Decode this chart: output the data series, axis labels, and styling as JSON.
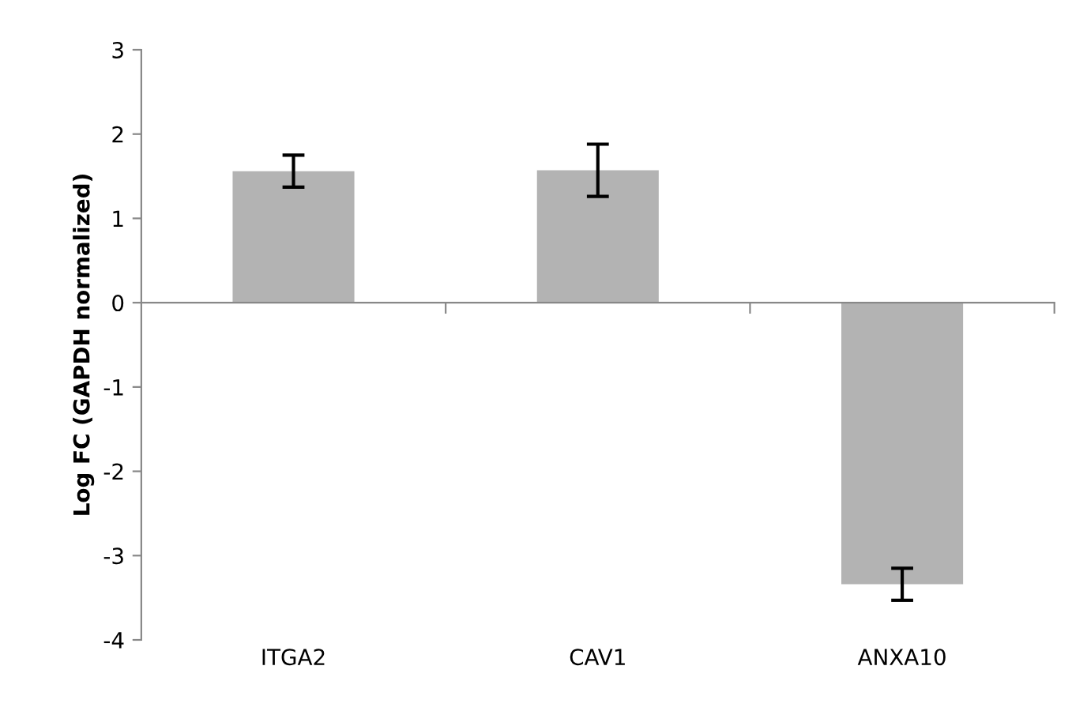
{
  "chart_data": {
    "type": "bar",
    "ylabel": "Log FC (GAPDH normalized)",
    "categories": [
      "ITGA2",
      "CAV1",
      "ANXA10"
    ],
    "values": [
      1.56,
      1.57,
      -3.34
    ],
    "errors": [
      0.19,
      0.31,
      0.19
    ],
    "color": "#b3b3b3",
    "ylim": [
      -4,
      3
    ],
    "yticks": [
      -4,
      -3,
      -2,
      -1,
      0,
      1,
      2,
      3
    ]
  }
}
